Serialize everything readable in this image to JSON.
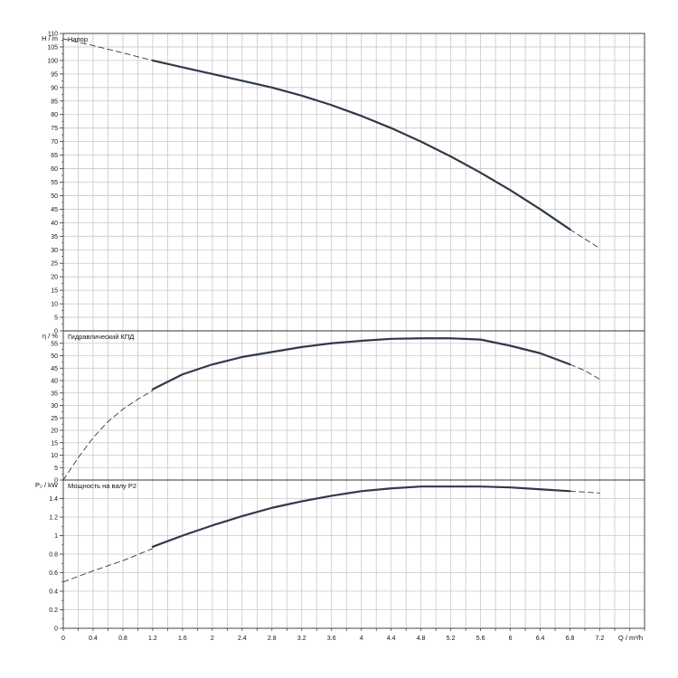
{
  "chart_data": [
    {
      "type": "line",
      "title": "Напор",
      "ylabel": "H / m",
      "xlabel": "",
      "grid": true,
      "xlim": [
        0,
        7.8
      ],
      "ylim": [
        0,
        110
      ],
      "yticks": [
        0,
        5,
        10,
        15,
        20,
        25,
        30,
        35,
        40,
        45,
        50,
        55,
        60,
        65,
        70,
        75,
        80,
        85,
        90,
        95,
        100,
        105,
        110
      ],
      "series": [
        {
          "line": "dashed",
          "x": [
            0,
            0.4,
            0.8,
            1.2
          ],
          "y": [
            108,
            105.5,
            102.8,
            100
          ]
        },
        {
          "line": "solid",
          "x": [
            1.2,
            1.6,
            2.0,
            2.4,
            2.8,
            3.2,
            3.6,
            4.0,
            4.4,
            4.8,
            5.2,
            5.6,
            6.0,
            6.4,
            6.8
          ],
          "y": [
            100,
            97.5,
            95,
            92.5,
            90,
            87,
            83.5,
            79.5,
            75,
            70,
            64.5,
            58.5,
            52,
            45,
            37.5
          ]
        },
        {
          "line": "dashed",
          "x": [
            6.8,
            7.0,
            7.2
          ],
          "y": [
            37.5,
            34,
            30.5
          ]
        }
      ]
    },
    {
      "type": "line",
      "title": "Гидравлический КПД",
      "ylabel": "η / %",
      "xlabel": "",
      "grid": true,
      "xlim": [
        0,
        7.8
      ],
      "ylim": [
        0,
        60
      ],
      "yticks": [
        0,
        5,
        10,
        15,
        20,
        25,
        30,
        35,
        40,
        45,
        50,
        55
      ],
      "series": [
        {
          "line": "dashed",
          "x": [
            0,
            0.2,
            0.4,
            0.6,
            0.8,
            1.0,
            1.2
          ],
          "y": [
            0,
            9,
            17,
            23.5,
            28.5,
            32.5,
            36
          ]
        },
        {
          "line": "solid",
          "x": [
            1.2,
            1.6,
            2.0,
            2.4,
            2.8,
            3.2,
            3.6,
            4.0,
            4.4,
            4.8,
            5.2,
            5.6,
            6.0,
            6.4,
            6.8
          ],
          "y": [
            36.5,
            42.5,
            46.5,
            49.5,
            51.5,
            53.5,
            55,
            56,
            56.8,
            57,
            57,
            56.5,
            54,
            51,
            46.5
          ]
        },
        {
          "line": "dashed",
          "x": [
            6.8,
            7.0,
            7.2
          ],
          "y": [
            46.5,
            44,
            40.5
          ]
        }
      ]
    },
    {
      "type": "line",
      "title": "Мощность на валу P2",
      "ylabel": "P₂ / kW",
      "xlabel": "Q / m³/h",
      "grid": true,
      "xlim": [
        0,
        7.8
      ],
      "ylim": [
        0,
        1.6
      ],
      "xticks": [
        0,
        0.4,
        0.8,
        1.2,
        1.6,
        2,
        2.4,
        2.8,
        3.2,
        3.6,
        4,
        4.4,
        4.8,
        5.2,
        5.6,
        6,
        6.4,
        6.8,
        7.2
      ],
      "yticks": [
        0,
        0.2,
        0.4,
        0.6,
        0.8,
        1,
        1.2,
        1.4
      ],
      "series": [
        {
          "line": "dashed",
          "x": [
            0,
            0.4,
            0.8,
            1.2
          ],
          "y": [
            0.5,
            0.62,
            0.73,
            0.86
          ]
        },
        {
          "line": "solid",
          "x": [
            1.2,
            1.6,
            2.0,
            2.4,
            2.8,
            3.2,
            3.6,
            4.0,
            4.4,
            4.8,
            5.2,
            5.6,
            6.0,
            6.4,
            6.8
          ],
          "y": [
            0.88,
            1.0,
            1.11,
            1.21,
            1.3,
            1.37,
            1.43,
            1.48,
            1.51,
            1.53,
            1.53,
            1.53,
            1.52,
            1.5,
            1.48
          ]
        },
        {
          "line": "dashed",
          "x": [
            6.8,
            7.0,
            7.2
          ],
          "y": [
            1.48,
            1.47,
            1.46
          ]
        }
      ]
    }
  ],
  "colors": {
    "curve": "#2f3a4a",
    "grid": "#c8c8c8",
    "frame": "#333333",
    "text": "#111111"
  }
}
